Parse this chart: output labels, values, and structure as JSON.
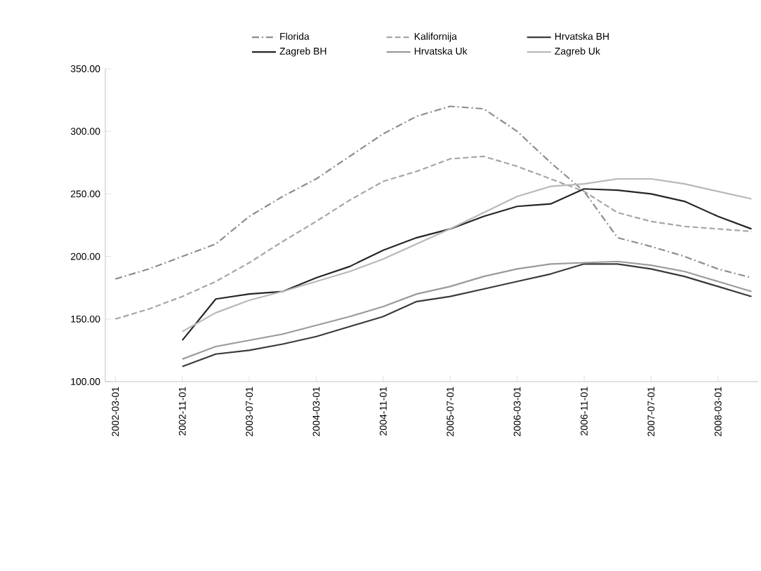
{
  "chart_data": {
    "type": "line",
    "categories": [
      "2002-03-01",
      null,
      "2002-11-01",
      null,
      "2003-07-01",
      null,
      "2004-03-01",
      null,
      "2004-11-01",
      null,
      "2005-07-01",
      null,
      "2006-03-01",
      null,
      "2006-11-01",
      null,
      "2007-07-01",
      null,
      "2008-03-01",
      null
    ],
    "series": [
      {
        "name": "Florida",
        "color": "#8c8c8c",
        "line_style": "dashdot",
        "values": [
          182,
          190,
          200,
          210,
          232,
          248,
          262,
          280,
          298,
          312,
          320,
          318,
          300,
          275,
          252,
          215,
          208,
          200,
          190,
          183
        ]
      },
      {
        "name": "Kalifornija",
        "color": "#a6a6a6",
        "line_style": "dashed",
        "values": [
          150,
          158,
          168,
          180,
          195,
          212,
          228,
          245,
          260,
          268,
          278,
          280,
          272,
          262,
          252,
          235,
          228,
          224,
          222,
          220
        ]
      },
      {
        "name": "Hrvatska BH",
        "color": "#3a3a3a",
        "line_style": "solid",
        "values": [
          null,
          null,
          112,
          122,
          125,
          130,
          136,
          144,
          152,
          164,
          168,
          174,
          180,
          186,
          194,
          194,
          190,
          184,
          176,
          168
        ]
      },
      {
        "name": "Zagreb BH",
        "color": "#262626",
        "line_style": "solid",
        "values": [
          null,
          null,
          133,
          166,
          170,
          172,
          183,
          192,
          205,
          215,
          222,
          232,
          240,
          242,
          254,
          253,
          250,
          244,
          232,
          222
        ]
      },
      {
        "name": "Hrvatska Uk",
        "color": "#9a9a9a",
        "line_style": "solid",
        "values": [
          null,
          null,
          118,
          128,
          133,
          138,
          145,
          152,
          160,
          170,
          176,
          184,
          190,
          194,
          195,
          196,
          193,
          188,
          180,
          172
        ]
      },
      {
        "name": "Zagreb Uk",
        "color": "#b8b8b8",
        "line_style": "solid",
        "values": [
          null,
          null,
          140,
          155,
          165,
          172,
          180,
          188,
          198,
          210,
          222,
          235,
          248,
          256,
          258,
          262,
          262,
          258,
          252,
          246
        ]
      }
    ],
    "ylim": [
      100,
      350
    ],
    "yticks": [
      {
        "value": 100,
        "label": "100.00"
      },
      {
        "value": 150,
        "label": "150.00"
      },
      {
        "value": 200,
        "label": "200.00"
      },
      {
        "value": 250,
        "label": "250.00"
      },
      {
        "value": 300,
        "label": "300.00"
      },
      {
        "value": 350,
        "label": "350.00"
      }
    ],
    "grid": false,
    "legend": "top",
    "marker": "none"
  }
}
